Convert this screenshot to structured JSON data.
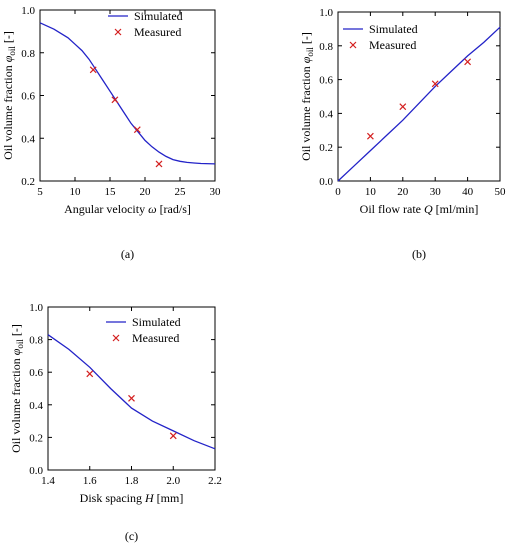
{
  "chart_data": [
    {
      "type": "line",
      "panel_label": "(a)",
      "xlabel": {
        "text": "Angular velocity ",
        "var": "ω",
        "unit": " [rad/s]"
      },
      "ylabel": {
        "text": "Oil volume fraction ",
        "var": "φ",
        "sub": "oil",
        "unit": " [-]"
      },
      "xlim": [
        5,
        30
      ],
      "ylim": [
        0.2,
        1.0
      ],
      "x_ticks": [
        5,
        10,
        15,
        20,
        25,
        30
      ],
      "y_ticks": [
        0.2,
        0.4,
        0.6,
        0.8,
        1.0
      ],
      "x_tick_labels": [
        "5",
        "10",
        "15",
        "20",
        "25",
        "30"
      ],
      "y_tick_labels": [
        "0.2",
        "0.4",
        "0.6",
        "0.8",
        "1.0"
      ],
      "legend_position": "top-right",
      "series": [
        {
          "name": "Simulated",
          "kind": "line",
          "color": "#2323c8",
          "x": [
            5,
            7,
            9,
            10,
            11,
            12,
            13,
            14,
            15,
            16,
            17,
            18,
            19,
            20,
            21,
            22,
            23,
            24,
            25,
            26,
            27,
            28,
            30
          ],
          "y": [
            0.94,
            0.91,
            0.87,
            0.84,
            0.81,
            0.77,
            0.72,
            0.67,
            0.62,
            0.57,
            0.52,
            0.47,
            0.43,
            0.39,
            0.36,
            0.335,
            0.315,
            0.3,
            0.292,
            0.287,
            0.284,
            0.282,
            0.28
          ]
        },
        {
          "name": "Measured",
          "kind": "scatter",
          "color": "#d42020",
          "x": [
            12.6,
            15.7,
            18.9,
            22.0
          ],
          "y": [
            0.72,
            0.58,
            0.44,
            0.28
          ]
        }
      ]
    },
    {
      "type": "line",
      "panel_label": "(b)",
      "xlabel": {
        "text": "Oil flow rate ",
        "var": "Q",
        "unit": " [ml/min]"
      },
      "ylabel": {
        "text": "Oil volume fraction ",
        "var": "φ",
        "sub": "oil",
        "unit": " [-]"
      },
      "xlim": [
        0,
        50
      ],
      "ylim": [
        0,
        1.0
      ],
      "x_ticks": [
        0,
        10,
        20,
        30,
        40,
        50
      ],
      "y_ticks": [
        0,
        0.2,
        0.4,
        0.6,
        0.8,
        1.0
      ],
      "x_tick_labels": [
        "0",
        "10",
        "20",
        "30",
        "40",
        "50"
      ],
      "y_tick_labels": [
        "0.0",
        "0.2",
        "0.4",
        "0.6",
        "0.8",
        "1.0"
      ],
      "legend_position": "top-left",
      "series": [
        {
          "name": "Simulated",
          "kind": "line",
          "color": "#2323c8",
          "x": [
            0,
            5,
            10,
            15,
            20,
            25,
            30,
            35,
            40,
            45,
            50
          ],
          "y": [
            0.0,
            0.09,
            0.18,
            0.27,
            0.36,
            0.46,
            0.56,
            0.65,
            0.74,
            0.82,
            0.91
          ]
        },
        {
          "name": "Measured",
          "kind": "scatter",
          "color": "#d42020",
          "x": [
            10,
            20,
            30,
            40
          ],
          "y": [
            0.265,
            0.44,
            0.575,
            0.705
          ]
        }
      ]
    },
    {
      "type": "line",
      "panel_label": "(c)",
      "xlabel": {
        "text": "Disk spacing ",
        "var": "H",
        "unit": " [mm]"
      },
      "ylabel": {
        "text": "Oil volume fraction ",
        "var": "φ",
        "sub": "oil",
        "unit": " [-]"
      },
      "xlim": [
        1.4,
        2.2
      ],
      "ylim": [
        0,
        1.0
      ],
      "x_ticks": [
        1.4,
        1.6,
        1.8,
        2.0,
        2.2
      ],
      "y_ticks": [
        0,
        0.2,
        0.4,
        0.6,
        0.8,
        1.0
      ],
      "x_tick_labels": [
        "1.4",
        "1.6",
        "1.8",
        "2.0",
        "2.2"
      ],
      "y_tick_labels": [
        "0.0",
        "0.2",
        "0.4",
        "0.6",
        "0.8",
        "1.0"
      ],
      "legend_position": "top-right",
      "series": [
        {
          "name": "Simulated",
          "kind": "line",
          "color": "#2323c8",
          "x": [
            1.4,
            1.5,
            1.6,
            1.7,
            1.8,
            1.9,
            2.0,
            2.1,
            2.2
          ],
          "y": [
            0.83,
            0.74,
            0.63,
            0.5,
            0.38,
            0.3,
            0.24,
            0.18,
            0.13
          ]
        },
        {
          "name": "Measured",
          "kind": "scatter",
          "color": "#d42020",
          "x": [
            1.6,
            1.8,
            2.0
          ],
          "y": [
            0.59,
            0.44,
            0.21
          ]
        }
      ]
    }
  ]
}
